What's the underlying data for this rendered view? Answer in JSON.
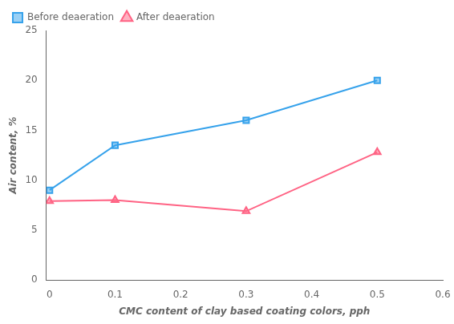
{
  "chart_data": {
    "type": "line",
    "x_label": "CMC content of clay based coating colors, pph",
    "y_label": "Air content, %",
    "x": [
      0,
      0.1,
      0.3,
      0.5
    ],
    "series": [
      {
        "name": "Before deaeration",
        "values": [
          9.0,
          13.5,
          16.0,
          20.0
        ],
        "marker": "square"
      },
      {
        "name": "After deaeration",
        "values": [
          7.9,
          8.0,
          6.9,
          12.8
        ],
        "marker": "triangle"
      }
    ],
    "xlim": [
      -0.005,
      0.6
    ],
    "xticks": [
      0,
      0.1,
      0.2,
      0.3,
      0.4,
      0.5,
      0.6
    ],
    "ylim": [
      0,
      25
    ],
    "yticks": [
      0,
      5,
      10,
      15,
      20,
      25
    ],
    "grid": false,
    "legend": "upper left"
  }
}
